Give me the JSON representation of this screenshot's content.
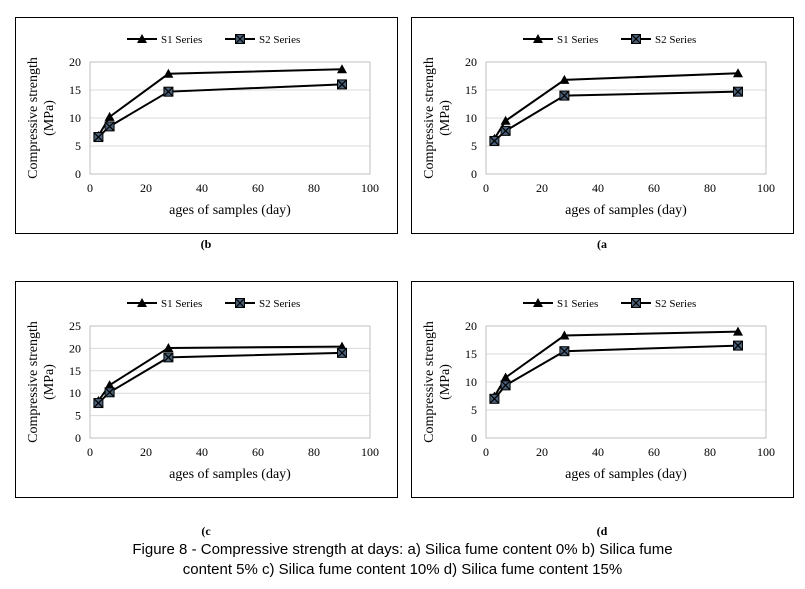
{
  "figure": {
    "caption_line1": "Figure 8 - Compressive strength at days: a) Silica fume content 0% b) Silica fume",
    "caption_line2": "content 5% c) Silica fume content 10% d) Silica fume content 15%"
  },
  "chart_data": [
    {
      "panel_label": "(b",
      "type": "line",
      "xlabel": "ages of samples (day)",
      "ylabel_line1": "Compressive strength",
      "ylabel_line2": "(MPa)",
      "xlim": [
        0,
        100
      ],
      "ylim": [
        0,
        20
      ],
      "xticks": [
        "0",
        "20",
        "40",
        "60",
        "80",
        "100"
      ],
      "yticks": [
        "0",
        "5",
        "10",
        "15",
        "20"
      ],
      "grid": true,
      "legend": "top-center",
      "series": [
        {
          "name": "S1 Series",
          "marker": "triangle",
          "x": [
            3,
            7,
            28,
            90
          ],
          "y": [
            6.8,
            10.2,
            17.9,
            18.7
          ]
        },
        {
          "name": "S2 Series",
          "marker": "square-x",
          "x": [
            3,
            7,
            28,
            90
          ],
          "y": [
            6.6,
            8.5,
            14.7,
            16.0
          ]
        }
      ]
    },
    {
      "panel_label": "(a",
      "type": "line",
      "xlabel": "ages of samples (day)",
      "ylabel_line1": "Compressive strength",
      "ylabel_line2": "(MPa)",
      "xlim": [
        0,
        100
      ],
      "ylim": [
        0,
        20
      ],
      "xticks": [
        "0",
        "20",
        "40",
        "60",
        "80",
        "100"
      ],
      "yticks": [
        "0",
        "5",
        "10",
        "15",
        "20"
      ],
      "grid": true,
      "legend": "top-center",
      "series": [
        {
          "name": "S1 Series",
          "marker": "triangle",
          "x": [
            3,
            7,
            28,
            90
          ],
          "y": [
            6.3,
            9.5,
            16.8,
            18.0
          ]
        },
        {
          "name": "S2 Series",
          "marker": "square-x",
          "x": [
            3,
            7,
            28,
            90
          ],
          "y": [
            5.9,
            7.7,
            14.0,
            14.7
          ]
        }
      ]
    },
    {
      "panel_label": "(c",
      "type": "line",
      "xlabel": "ages of samples (day)",
      "ylabel_line1": "Compressive strength",
      "ylabel_line2": "(MPa)",
      "xlim": [
        0,
        100
      ],
      "ylim": [
        0,
        25
      ],
      "xticks": [
        "0",
        "20",
        "40",
        "60",
        "80",
        "100"
      ],
      "yticks": [
        "0",
        "5",
        "10",
        "15",
        "20",
        "25"
      ],
      "grid": true,
      "legend": "top-center",
      "series": [
        {
          "name": "S1 Series",
          "marker": "triangle",
          "x": [
            3,
            7,
            28,
            90
          ],
          "y": [
            8.3,
            11.8,
            20.1,
            20.4
          ]
        },
        {
          "name": "S2 Series",
          "marker": "square-x",
          "x": [
            3,
            7,
            28,
            90
          ],
          "y": [
            7.8,
            10.2,
            18.0,
            19.0
          ]
        }
      ]
    },
    {
      "panel_label": "(d",
      "type": "line",
      "xlabel": "ages of samples (day)",
      "ylabel_line1": "Compressive strength",
      "ylabel_line2": "(MPa)",
      "xlim": [
        0,
        100
      ],
      "ylim": [
        0,
        20
      ],
      "xticks": [
        "0",
        "20",
        "40",
        "60",
        "80",
        "100"
      ],
      "yticks": [
        "0",
        "5",
        "10",
        "15",
        "20"
      ],
      "grid": true,
      "legend": "top-center",
      "series": [
        {
          "name": "S1 Series",
          "marker": "triangle",
          "x": [
            3,
            7,
            28,
            90
          ],
          "y": [
            7.4,
            10.8,
            18.3,
            19.0
          ]
        },
        {
          "name": "S2 Series",
          "marker": "square-x",
          "x": [
            3,
            7,
            28,
            90
          ],
          "y": [
            7.0,
            9.4,
            15.5,
            16.5
          ]
        }
      ]
    }
  ]
}
